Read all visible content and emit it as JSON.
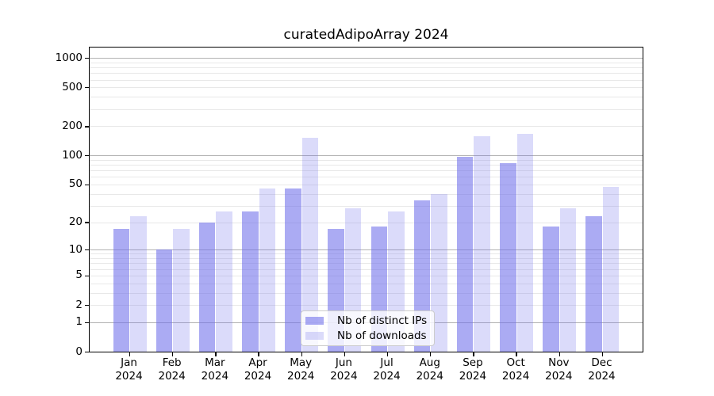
{
  "chart_data": {
    "type": "bar",
    "title": "curatedAdipoArray 2024",
    "categories": [
      "Jan",
      "Feb",
      "Mar",
      "Apr",
      "May",
      "Jun",
      "Jul",
      "Aug",
      "Sep",
      "Oct",
      "Nov",
      "Dec"
    ],
    "year_label": "2024",
    "series": [
      {
        "name": "Nb of distinct IPs",
        "values": [
          17,
          10,
          20,
          26,
          45,
          17,
          18,
          34,
          96,
          83,
          18,
          23
        ],
        "color": "rgba(110,110,235,0.58)"
      },
      {
        "name": "Nb of downloads",
        "values": [
          23,
          17,
          26,
          45,
          153,
          28,
          26,
          40,
          158,
          167,
          28,
          47
        ],
        "color": "rgba(110,110,235,0.25)"
      }
    ],
    "yscale": "log1p",
    "yticks": [
      0,
      1,
      2,
      5,
      10,
      20,
      50,
      100,
      200,
      500,
      1000
    ],
    "ylim": [
      0,
      1280
    ],
    "grid": "horizontal major and log-minor gridlines",
    "legend_position": "lower-center"
  },
  "colors": {
    "background": "#ffffff",
    "bar_base": "#6E6EEB",
    "grid_major": "#b2b2b2",
    "grid_minor": "#e8e8e8",
    "axis": "#000000",
    "legend_border": "#cccccc",
    "legend_bg": "rgba(255,255,255,0.8)"
  }
}
